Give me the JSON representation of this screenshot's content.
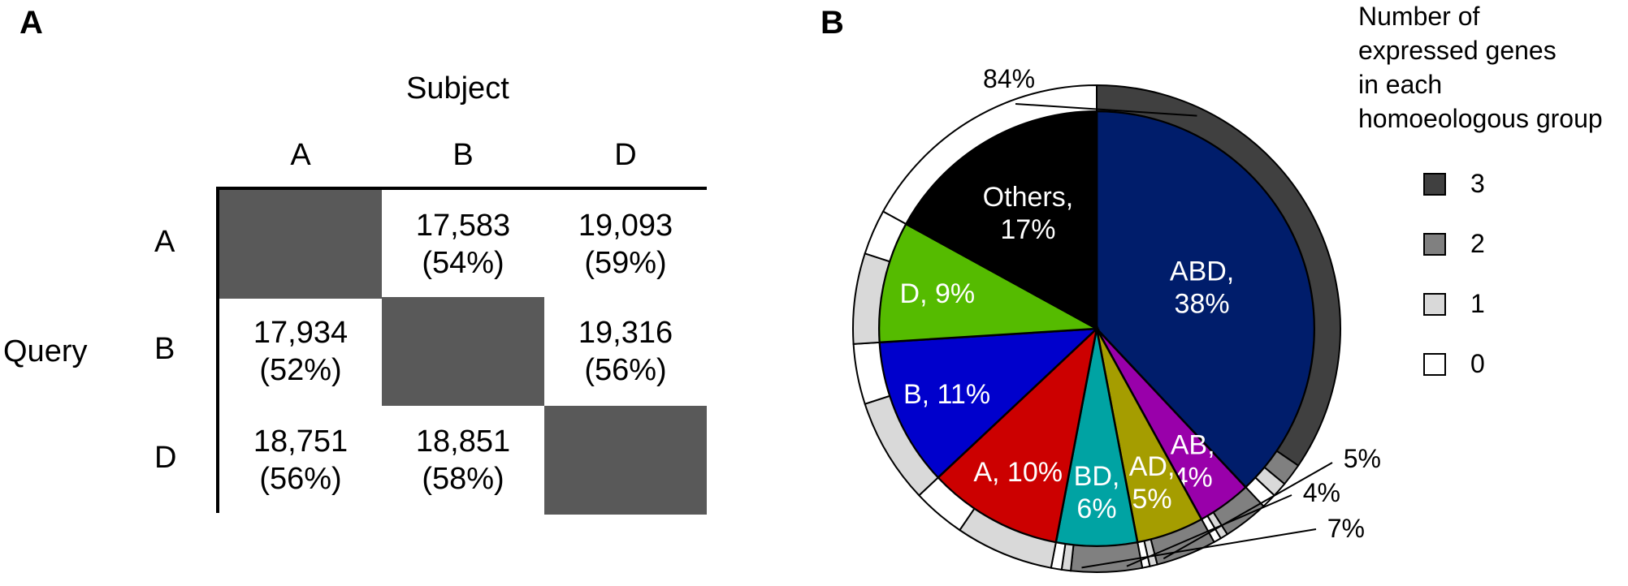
{
  "panel_a": {
    "label": "A",
    "column_title": "Subject",
    "row_title": "Query",
    "columns": [
      "A",
      "B",
      "D"
    ],
    "rows": [
      "A",
      "B",
      "D"
    ],
    "cells": [
      [
        {
          "count": "",
          "pct": ""
        },
        {
          "count": "17,583",
          "pct": "(54%)"
        },
        {
          "count": "19,093",
          "pct": "(59%)"
        }
      ],
      [
        {
          "count": "17,934",
          "pct": "(52%)"
        },
        {
          "count": "",
          "pct": ""
        },
        {
          "count": "19,316",
          "pct": "(56%)"
        }
      ],
      [
        {
          "count": "18,751",
          "pct": "(56%)"
        },
        {
          "count": "18,851",
          "pct": "(58%)"
        },
        {
          "count": "",
          "pct": ""
        }
      ]
    ],
    "diagonal_color": "#595959"
  },
  "panel_b": {
    "label": "B",
    "legend_title_lines": [
      "Number of",
      "expressed genes",
      "in each",
      "homoeologous group"
    ],
    "legend": [
      {
        "label": "3",
        "color": "#404040"
      },
      {
        "label": "2",
        "color": "#808080"
      },
      {
        "label": "1",
        "color": "#d9d9d9"
      },
      {
        "label": "0",
        "color": "#ffffff"
      }
    ],
    "outer_labels": [
      "84%",
      "5%",
      "4%",
      "7%"
    ]
  },
  "chart_data": {
    "type": "pie",
    "title": "",
    "slices": [
      {
        "label_lines": [
          "ABD,",
          "38%"
        ],
        "value": 38,
        "color": "#001d6b",
        "text_color": "#ffffff"
      },
      {
        "label_lines": [
          "AB,",
          "4%"
        ],
        "value": 4,
        "color": "#9900aa",
        "text_color": "#ffffff"
      },
      {
        "label_lines": [
          "AD,",
          "5%"
        ],
        "value": 5,
        "color": "#a59d00",
        "text_color": "#ffffff"
      },
      {
        "label_lines": [
          "BD,",
          "6%"
        ],
        "value": 6,
        "color": "#00a3a3",
        "text_color": "#ffffff"
      },
      {
        "label_lines": [
          "A, 10%"
        ],
        "value": 10,
        "color": "#cc0000",
        "text_color": "#ffffff"
      },
      {
        "label_lines": [
          "B, 11%"
        ],
        "value": 11,
        "color": "#0000cc",
        "text_color": "#ffffff"
      },
      {
        "label_lines": [
          "D, 9%"
        ],
        "value": 9,
        "color": "#55bb00",
        "text_color": "#ffffff"
      },
      {
        "label_lines": [
          "Others,",
          "17%"
        ],
        "value": 17,
        "color": "#000000",
        "text_color": "#ffffff"
      }
    ],
    "outer_ring": {
      "legend_title": "Number of expressed genes in each homoeologous group",
      "categories": [
        "3",
        "2",
        "1",
        "0"
      ],
      "summary": [
        {
          "label": "84%",
          "category": "3",
          "value": 84
        },
        {
          "label": "5%",
          "category": "2",
          "value": 5
        },
        {
          "label": "4%",
          "category": "1",
          "value": 4
        },
        {
          "label": "7%",
          "category": "0",
          "value": 7
        }
      ],
      "by_slice": [
        {
          "slice": "ABD",
          "parts": [
            {
              "category": "3",
              "value": 34.5
            },
            {
              "category": "2",
              "value": 1.5
            },
            {
              "category": "1",
              "value": 1.0
            },
            {
              "category": "0",
              "value": 1.0
            }
          ]
        },
        {
          "slice": "AB",
          "parts": [
            {
              "category": "2",
              "value": 3.0
            },
            {
              "category": "1",
              "value": 0.5
            },
            {
              "category": "0",
              "value": 0.5
            }
          ]
        },
        {
          "slice": "AD",
          "parts": [
            {
              "category": "2",
              "value": 4.0
            },
            {
              "category": "1",
              "value": 0.5
            },
            {
              "category": "0",
              "value": 0.5
            }
          ]
        },
        {
          "slice": "BD",
          "parts": [
            {
              "category": "2",
              "value": 4.7
            },
            {
              "category": "1",
              "value": 0.6
            },
            {
              "category": "0",
              "value": 0.7
            }
          ]
        },
        {
          "slice": "A",
          "parts": [
            {
              "category": "1",
              "value": 6.5
            },
            {
              "category": "0",
              "value": 3.5
            }
          ]
        },
        {
          "slice": "B",
          "parts": [
            {
              "category": "1",
              "value": 7.0
            },
            {
              "category": "0",
              "value": 4.0
            }
          ]
        },
        {
          "slice": "D",
          "parts": [
            {
              "category": "1",
              "value": 6.0
            },
            {
              "category": "0",
              "value": 3.0
            }
          ]
        },
        {
          "slice": "Others",
          "parts": [
            {
              "category": "0",
              "value": 17.0
            }
          ]
        }
      ]
    }
  }
}
